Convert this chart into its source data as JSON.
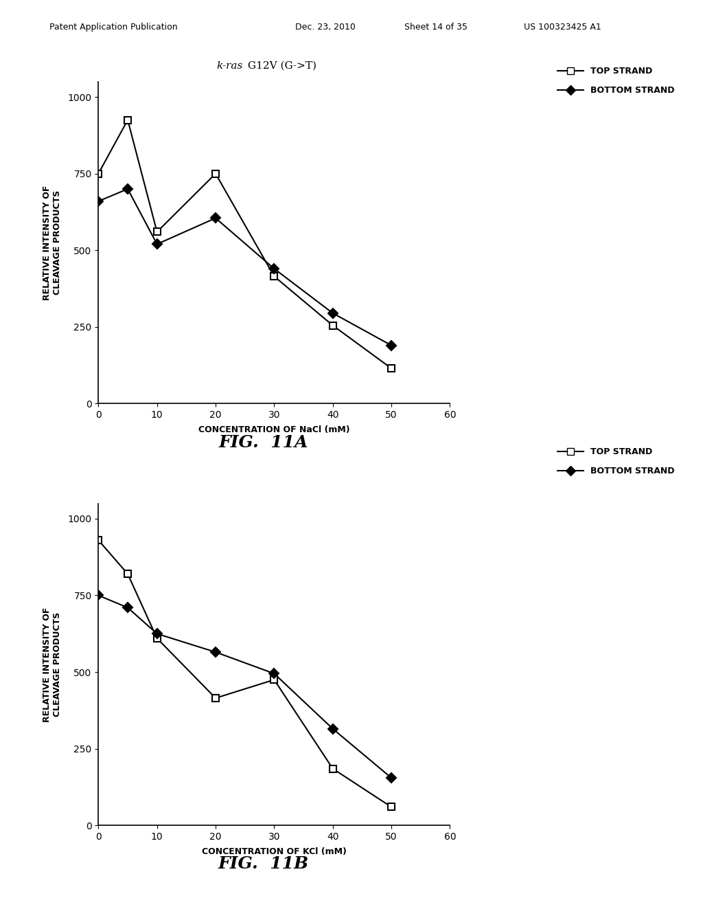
{
  "fig11a": {
    "title_italic": "k-ras",
    "title_normal": " G12V (G->T)",
    "top_strand_x": [
      0,
      5,
      10,
      20,
      30,
      40,
      50
    ],
    "top_strand_y": [
      750,
      925,
      560,
      750,
      415,
      255,
      115
    ],
    "bottom_strand_x": [
      0,
      5,
      10,
      20,
      30,
      40,
      50
    ],
    "bottom_strand_y": [
      660,
      700,
      520,
      605,
      440,
      295,
      190
    ],
    "xlabel": "CONCENTRATION OF NaCl (mM)",
    "ylabel": "RELATIVE INTENSITY OF\nCLEAVAGE PRODUCTS",
    "xlim": [
      0,
      60
    ],
    "ylim": [
      0,
      1050
    ],
    "yticks": [
      0,
      250,
      500,
      750,
      1000
    ],
    "xticks": [
      0,
      10,
      20,
      30,
      40,
      50,
      60
    ],
    "fig_label": "FIG.  11A"
  },
  "fig11b": {
    "top_strand_x": [
      0,
      5,
      10,
      20,
      30,
      40,
      50
    ],
    "top_strand_y": [
      930,
      820,
      610,
      415,
      475,
      185,
      60
    ],
    "bottom_strand_x": [
      0,
      5,
      10,
      20,
      30,
      40,
      50
    ],
    "bottom_strand_y": [
      750,
      710,
      625,
      565,
      495,
      315,
      155
    ],
    "xlabel": "CONCENTRATION OF KCl (mM)",
    "ylabel": "RELATIVE INTENSITY OF\nCLEAVAGE PRODUCTS",
    "xlim": [
      0,
      60
    ],
    "ylim": [
      0,
      1050
    ],
    "yticks": [
      0,
      250,
      500,
      750,
      1000
    ],
    "xticks": [
      0,
      10,
      20,
      30,
      40,
      50,
      60
    ],
    "fig_label": "FIG.  11B"
  },
  "legend_top": "TOP STRAND",
  "legend_bottom": "BOTTOM STRAND",
  "background_color": "#ffffff",
  "header_pub": "Patent Application Publication",
  "header_date": "Dec. 23, 2010",
  "header_sheet": "Sheet 14 of 35",
  "header_us": "US 100323425 A1"
}
